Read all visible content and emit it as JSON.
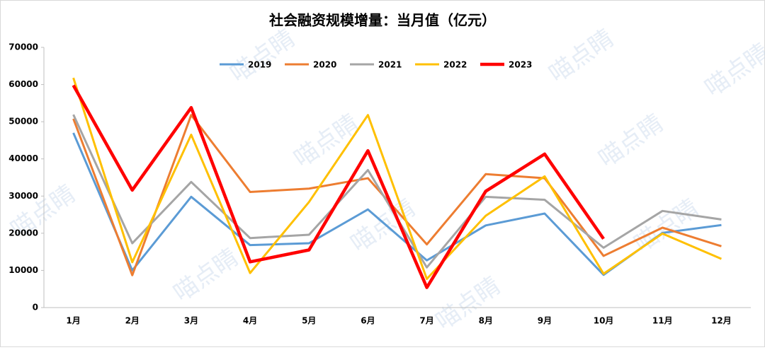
{
  "chart_data": {
    "type": "line",
    "title": "社会融资规模增量：当月值（亿元）",
    "watermark": "喵点睛",
    "categories": [
      "1月",
      "2月",
      "3月",
      "4月",
      "5月",
      "6月",
      "7月",
      "8月",
      "9月",
      "10月",
      "11月",
      "12月"
    ],
    "series": [
      {
        "name": "2019",
        "color": "#5b9bd5",
        "values": [
          47000,
          10000,
          29800,
          16800,
          17300,
          26400,
          12700,
          22100,
          25300,
          8800,
          20100,
          22200
        ]
      },
      {
        "name": "2020",
        "color": "#ed7d31",
        "values": [
          50800,
          8700,
          51800,
          31100,
          32000,
          34800,
          17000,
          35900,
          34800,
          13900,
          21500,
          16500
        ]
      },
      {
        "name": "2021",
        "color": "#a5a5a5",
        "values": [
          51900,
          17300,
          33800,
          18700,
          19600,
          37000,
          10800,
          29800,
          29000,
          16100,
          26000,
          23700
        ]
      },
      {
        "name": "2022",
        "color": "#ffc000",
        "values": [
          61800,
          12200,
          46500,
          9300,
          28400,
          51800,
          7700,
          24700,
          35300,
          9100,
          19900,
          13100
        ]
      },
      {
        "name": "2023",
        "color": "#ff0000",
        "values": [
          59800,
          31600,
          53800,
          12300,
          15500,
          42200,
          5400,
          31300,
          41300,
          18500,
          null,
          null
        ]
      }
    ],
    "ylim": [
      0,
      70000
    ],
    "yticks": [
      0,
      10000,
      20000,
      30000,
      40000,
      50000,
      60000,
      70000
    ],
    "grid": false,
    "legend": "top"
  }
}
